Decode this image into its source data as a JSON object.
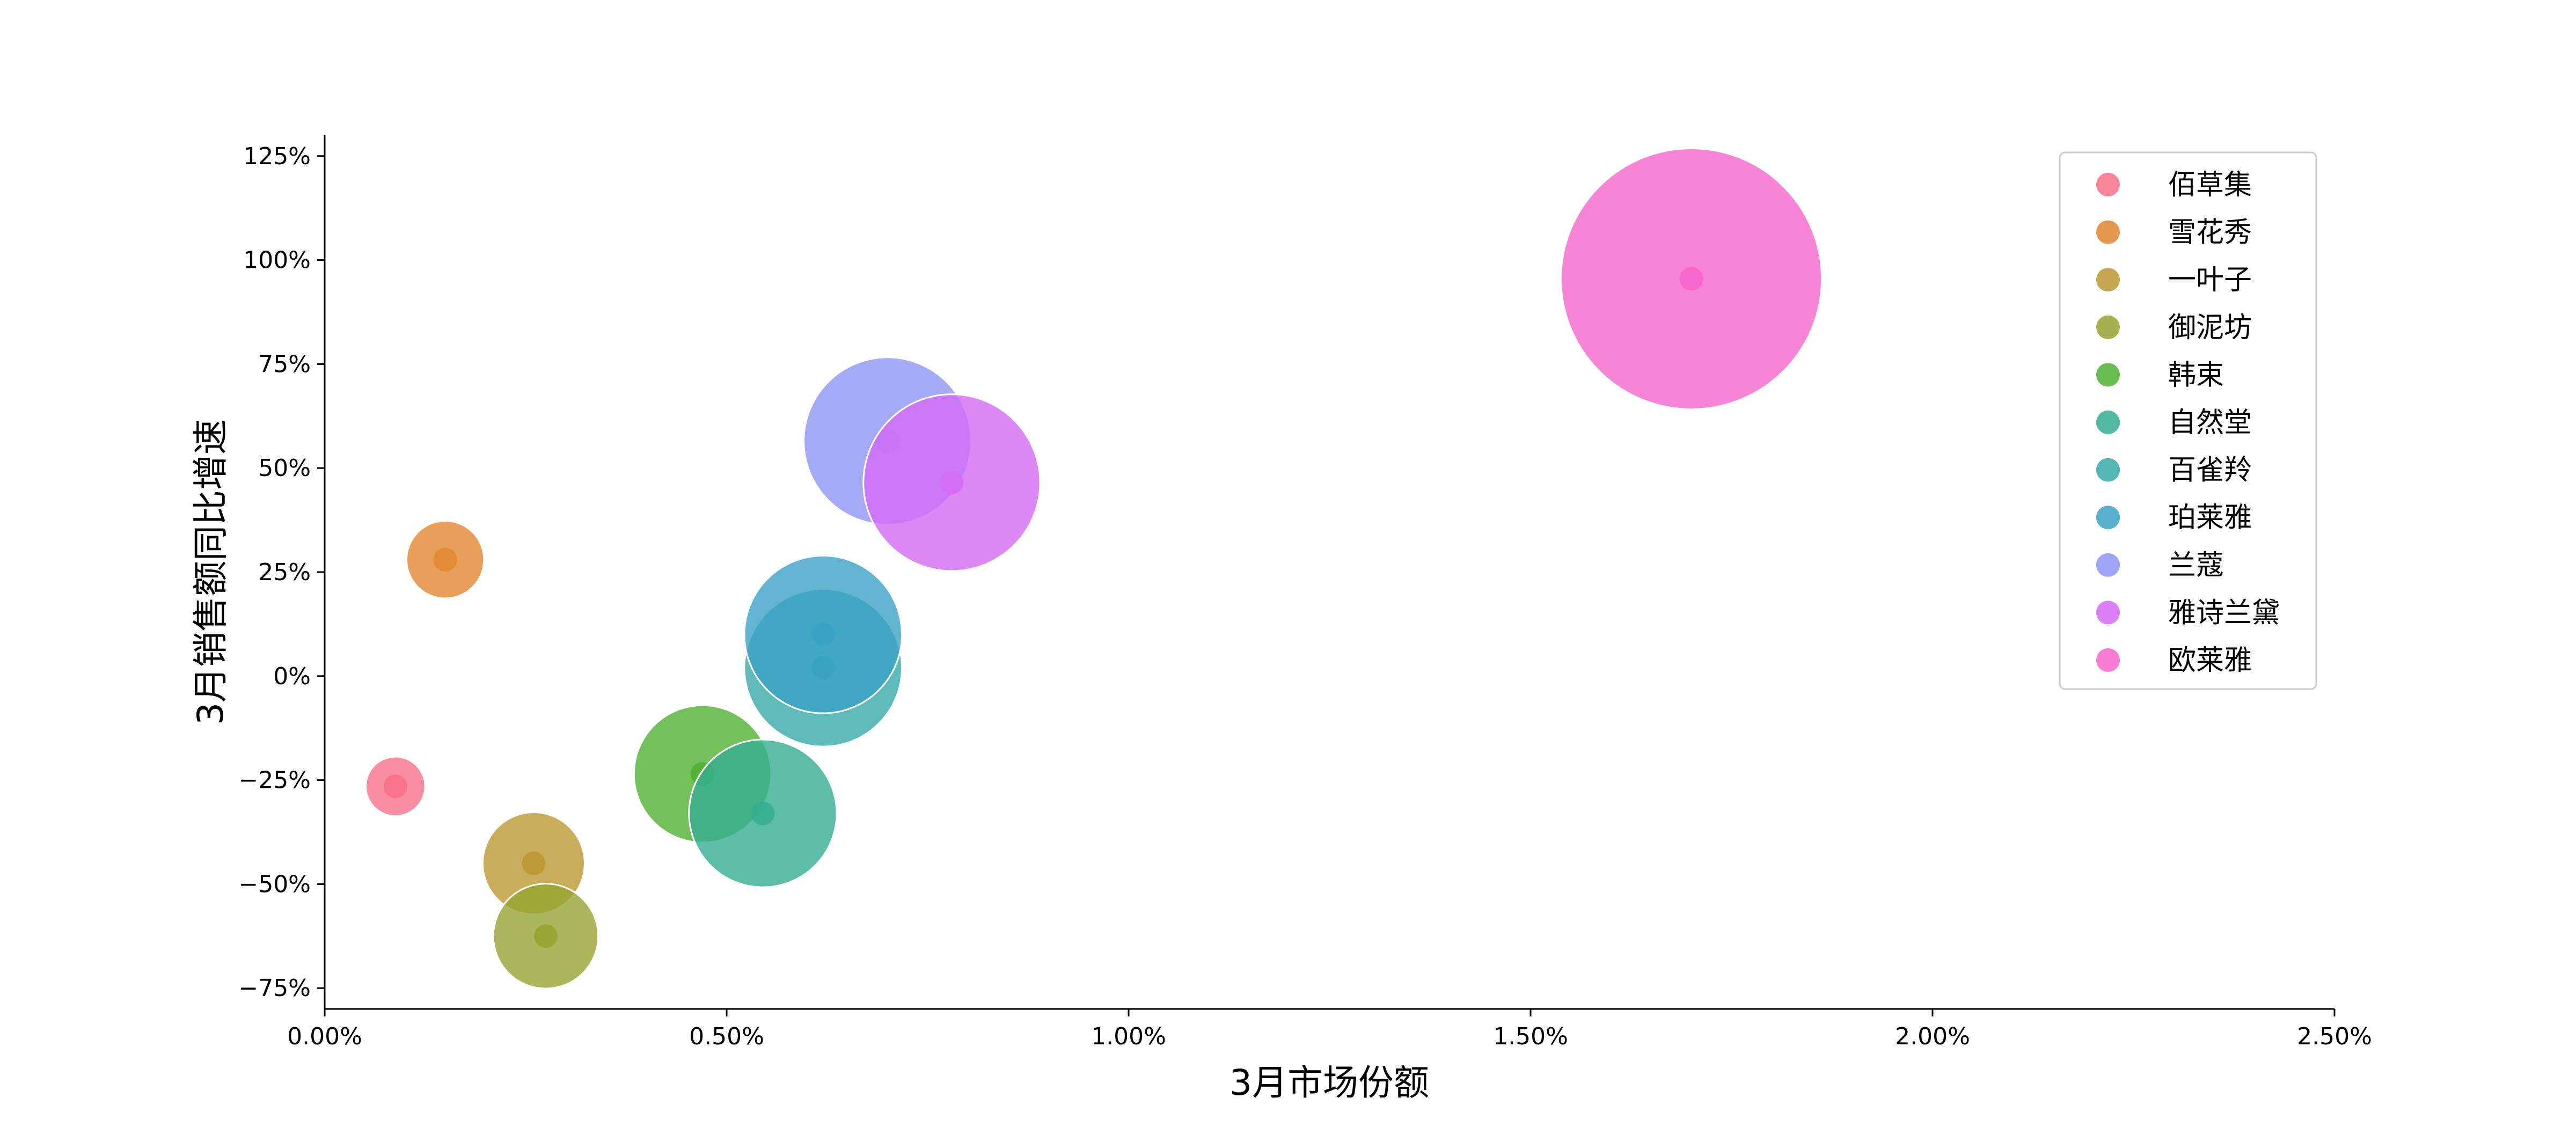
{
  "chart_data": {
    "type": "scatter",
    "title": "",
    "xlabel": "3月市场份额",
    "ylabel": "3月销售额同比增速",
    "xlim": [
      0,
      0.025
    ],
    "ylim": [
      -0.8,
      1.3
    ],
    "xticks": [
      0,
      0.005,
      0.01,
      0.015,
      0.02,
      0.025
    ],
    "xtick_labels": [
      "0.00%",
      "0.50%",
      "1.00%",
      "1.50%",
      "2.00%",
      "2.50%"
    ],
    "yticks": [
      -0.75,
      -0.5,
      -0.25,
      0,
      0.25,
      0.5,
      0.75,
      1.0,
      1.25
    ],
    "ytick_labels": [
      "−75%",
      "−50%",
      "−25%",
      "0%",
      "25%",
      "50%",
      "75%",
      "100%",
      "125%"
    ],
    "legend_position": "top-right",
    "grid": false,
    "size_encodes": "market share (bubble area)",
    "series": [
      {
        "name": "佰草集",
        "color": "#f77189",
        "x": 0.00088,
        "y": -0.265
      },
      {
        "name": "雪花秀",
        "color": "#e18731",
        "x": 0.0015,
        "y": 0.28
      },
      {
        "name": "一叶子",
        "color": "#bb9832",
        "x": 0.0026,
        "y": -0.45
      },
      {
        "name": "御泥坊",
        "color": "#97a431",
        "x": 0.00275,
        "y": -0.625
      },
      {
        "name": "韩束",
        "color": "#50b131",
        "x": 0.0047,
        "y": -0.235
      },
      {
        "name": "自然堂",
        "color": "#34ae91",
        "x": 0.00545,
        "y": -0.33
      },
      {
        "name": "百雀羚",
        "color": "#37aaa7",
        "x": 0.0062,
        "y": 0.02
      },
      {
        "name": "珀莱雅",
        "color": "#3ba3c6",
        "x": 0.0062,
        "y": 0.1
      },
      {
        "name": "兰蔻",
        "color": "#8e95f5",
        "x": 0.007,
        "y": 0.565
      },
      {
        "name": "雅诗兰黛",
        "color": "#d36bf5",
        "x": 0.0078,
        "y": 0.465
      },
      {
        "name": "欧莱雅",
        "color": "#f565cc",
        "x": 0.017,
        "y": 0.955
      }
    ]
  }
}
